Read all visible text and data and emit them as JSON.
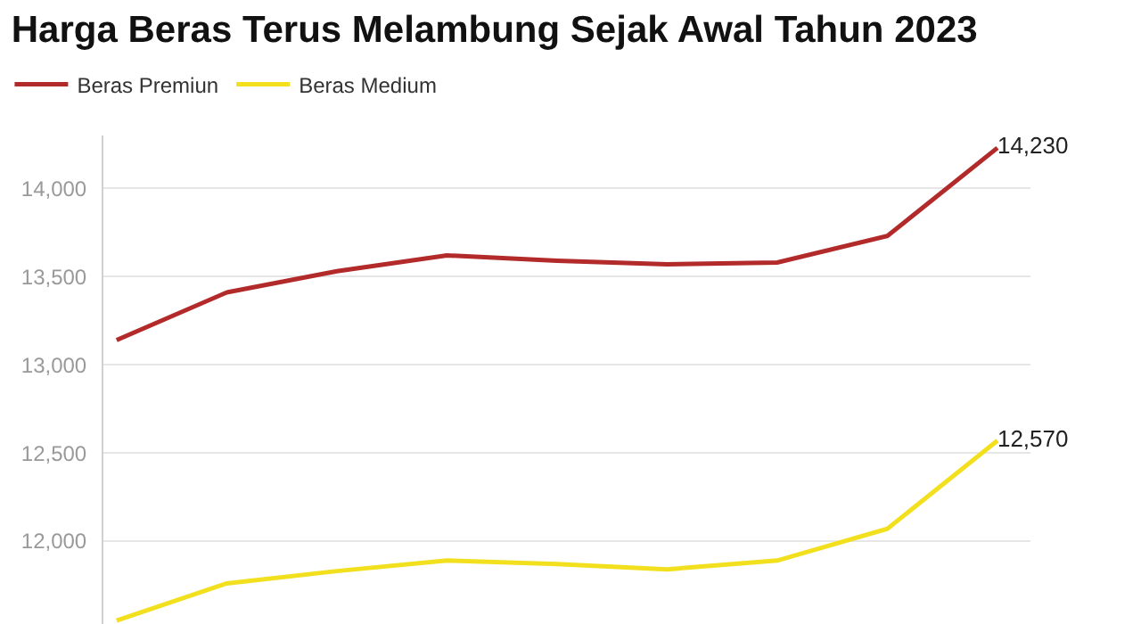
{
  "chart_data": {
    "type": "line",
    "title": "Harga Beras Terus Melambung Sejak Awal Tahun 2023",
    "categories": [
      null,
      null,
      null,
      null,
      null,
      null,
      null,
      null,
      null
    ],
    "series": [
      {
        "name": "Beras Premiun",
        "color": "#b22a2a",
        "values": [
          13140,
          13410,
          13530,
          13620,
          13590,
          13570,
          13580,
          13730,
          14230
        ],
        "value_labels": [
          null,
          null,
          null,
          null,
          null,
          null,
          null,
          null,
          "14,230"
        ]
      },
      {
        "name": "Beras Medium",
        "color": "#f2e01f",
        "values": [
          11550,
          11760,
          11830,
          11890,
          11870,
          11840,
          11890,
          12070,
          12570
        ],
        "value_labels": [
          null,
          null,
          null,
          null,
          null,
          null,
          null,
          null,
          "12,570"
        ]
      }
    ],
    "ylim": [
      11530,
      14300
    ],
    "yticks": [
      {
        "value": 12000,
        "label": "12,000"
      },
      {
        "value": 12500,
        "label": "12,500"
      },
      {
        "value": 13000,
        "label": "13,000"
      },
      {
        "value": 13500,
        "label": "13,500"
      },
      {
        "value": 14000,
        "label": "14,000"
      }
    ],
    "grid": "y",
    "legend": "top left",
    "marker": "none",
    "line_style": "solid"
  }
}
